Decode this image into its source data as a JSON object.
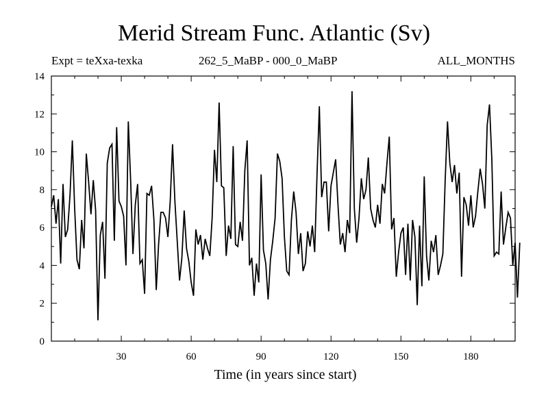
{
  "chart_data": {
    "type": "line",
    "title": "Merid Stream Func. Atlantic (Sv)",
    "subtitle_left": "Expt = teXxa-texka",
    "subtitle_center": "262_5_MaBP - 000_0_MaBP",
    "subtitle_right": "ALL_MONTHS",
    "xlabel": "Time (in years since start)",
    "ylabel": "",
    "xlim": [
      0,
      199
    ],
    "ylim": [
      0,
      14
    ],
    "xticks": [
      30,
      60,
      90,
      120,
      150,
      180
    ],
    "yticks": [
      0,
      2,
      4,
      6,
      8,
      10,
      12,
      14
    ],
    "grid": false,
    "series": [
      {
        "name": "Merid Stream Func. Atlantic",
        "color": "#000000",
        "x_start": 0,
        "x_step": 1,
        "values": [
          7.1,
          7.7,
          6.2,
          7.5,
          4.1,
          8.3,
          5.5,
          5.9,
          7.7,
          10.6,
          7.0,
          4.3,
          3.8,
          6.4,
          4.9,
          9.9,
          8.4,
          6.7,
          8.5,
          6.9,
          1.1,
          5.6,
          6.3,
          3.3,
          9.4,
          10.2,
          10.4,
          5.3,
          11.3,
          7.4,
          7.1,
          6.6,
          4.0,
          11.6,
          8.5,
          4.6,
          7.2,
          8.3,
          4.1,
          4.3,
          2.5,
          7.8,
          7.7,
          8.2,
          6.4,
          2.7,
          5.1,
          6.8,
          6.8,
          6.5,
          5.5,
          7.4,
          10.4,
          7.4,
          5.3,
          3.2,
          4.4,
          6.9,
          4.9,
          4.2,
          3.1,
          2.4,
          5.9,
          5.1,
          5.6,
          4.3,
          5.4,
          4.9,
          4.5,
          6.5,
          10.1,
          8.4,
          12.6,
          8.2,
          8.1,
          4.5,
          6.1,
          5.4,
          10.3,
          5.1,
          5.0,
          6.3,
          5.3,
          9.0,
          10.6,
          4.0,
          4.4,
          2.4,
          4.1,
          3.1,
          8.8,
          4.8,
          4.1,
          2.2,
          4.3,
          5.3,
          6.5,
          9.9,
          9.5,
          8.6,
          5.5,
          3.7,
          3.5,
          6.4,
          7.9,
          6.8,
          4.6,
          5.7,
          3.7,
          4.1,
          5.8,
          5.0,
          6.1,
          4.7,
          8.8,
          12.4,
          7.6,
          8.4,
          8.4,
          5.8,
          8.2,
          8.9,
          9.6,
          7.2,
          5.1,
          5.7,
          4.7,
          6.4,
          5.7,
          13.2,
          7.0,
          5.2,
          6.5,
          8.6,
          7.5,
          8.0,
          9.7,
          7.0,
          6.4,
          6.0,
          7.2,
          6.2,
          8.3,
          7.8,
          9.4,
          10.8,
          5.9,
          6.5,
          3.4,
          4.7,
          5.7,
          6.0,
          3.5,
          6.2,
          3.2,
          6.4,
          5.5,
          1.9,
          6.1,
          2.9,
          8.7,
          4.5,
          3.2,
          5.3,
          4.7,
          5.6,
          3.5,
          4.0,
          4.6,
          8.5,
          11.6,
          9.4,
          8.4,
          9.3,
          7.8,
          8.9,
          3.4,
          7.6,
          7.2,
          6.1,
          7.7,
          6.0,
          6.6,
          7.9,
          9.1,
          8.3,
          7.0,
          11.4,
          12.5,
          9.6,
          4.5,
          4.7,
          4.6,
          7.9,
          5.1,
          6.0,
          6.8,
          6.5,
          4.0,
          5.2,
          2.3,
          5.2
        ]
      }
    ]
  }
}
